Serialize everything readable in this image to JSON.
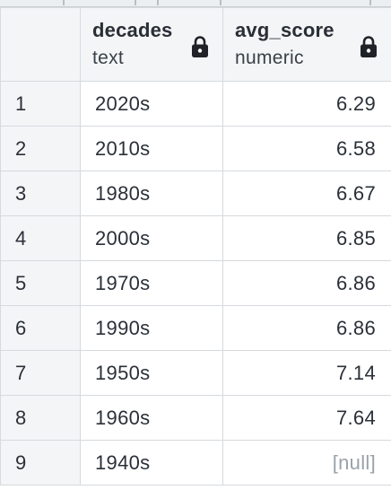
{
  "columns": [
    {
      "name": "decades",
      "type": "text",
      "icon": "lock-icon"
    },
    {
      "name": "avg_score",
      "type": "numeric",
      "icon": "lock-icon"
    }
  ],
  "rows": [
    {
      "index": "1",
      "decades": "2020s",
      "avg_score": "6.29"
    },
    {
      "index": "2",
      "decades": "2010s",
      "avg_score": "6.58"
    },
    {
      "index": "3",
      "decades": "1980s",
      "avg_score": "6.67"
    },
    {
      "index": "4",
      "decades": "2000s",
      "avg_score": "6.85"
    },
    {
      "index": "5",
      "decades": "1970s",
      "avg_score": "6.86"
    },
    {
      "index": "6",
      "decades": "1990s",
      "avg_score": "6.86"
    },
    {
      "index": "7",
      "decades": "1950s",
      "avg_score": "7.14"
    },
    {
      "index": "8",
      "decades": "1960s",
      "avg_score": "7.64"
    },
    {
      "index": "9",
      "decades": "1940s",
      "avg_score": "[null]"
    }
  ],
  "colors": {
    "header_bg": "#f3f5f7",
    "border": "#d6dade",
    "null_text": "#9aa1a9"
  }
}
